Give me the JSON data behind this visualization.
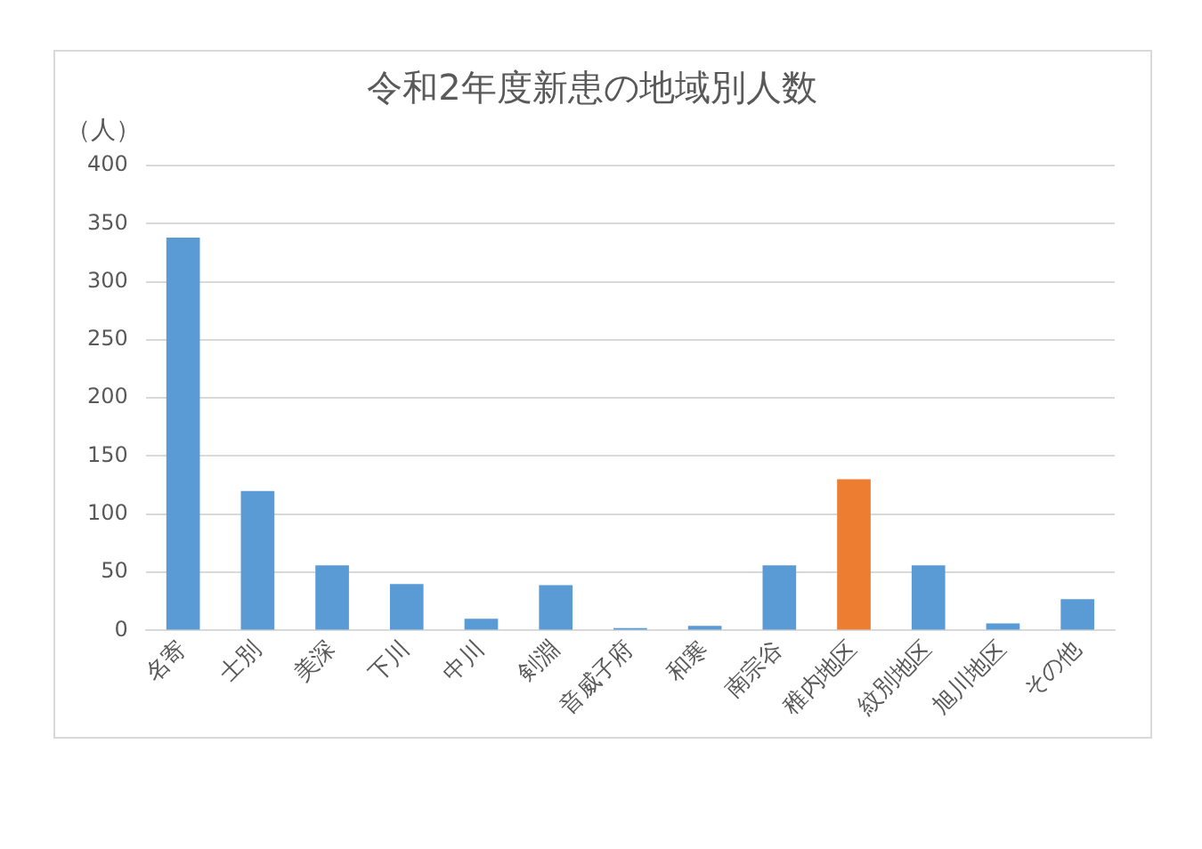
{
  "chart_data": {
    "type": "bar",
    "title": "令和2年度新患の地域別人数",
    "ylabel": "（人）",
    "categories": [
      "名寄",
      "士別",
      "美深",
      "下川",
      "中川",
      "剣淵",
      "音威子府",
      "和寒",
      "南宗谷",
      "稚内地区",
      "紋別地区",
      "旭川地区",
      "その他"
    ],
    "values": [
      338,
      120,
      56,
      40,
      10,
      39,
      2,
      4,
      56,
      130,
      56,
      6,
      27
    ],
    "colors": [
      "#5b9bd5",
      "#5b9bd5",
      "#5b9bd5",
      "#5b9bd5",
      "#5b9bd5",
      "#5b9bd5",
      "#5b9bd5",
      "#5b9bd5",
      "#5b9bd5",
      "#ed7d31",
      "#5b9bd5",
      "#5b9bd5",
      "#5b9bd5"
    ],
    "ylim": [
      0,
      400
    ],
    "yticks": [
      0,
      50,
      100,
      150,
      200,
      250,
      300,
      350,
      400
    ],
    "grid": "y",
    "legend": false
  }
}
